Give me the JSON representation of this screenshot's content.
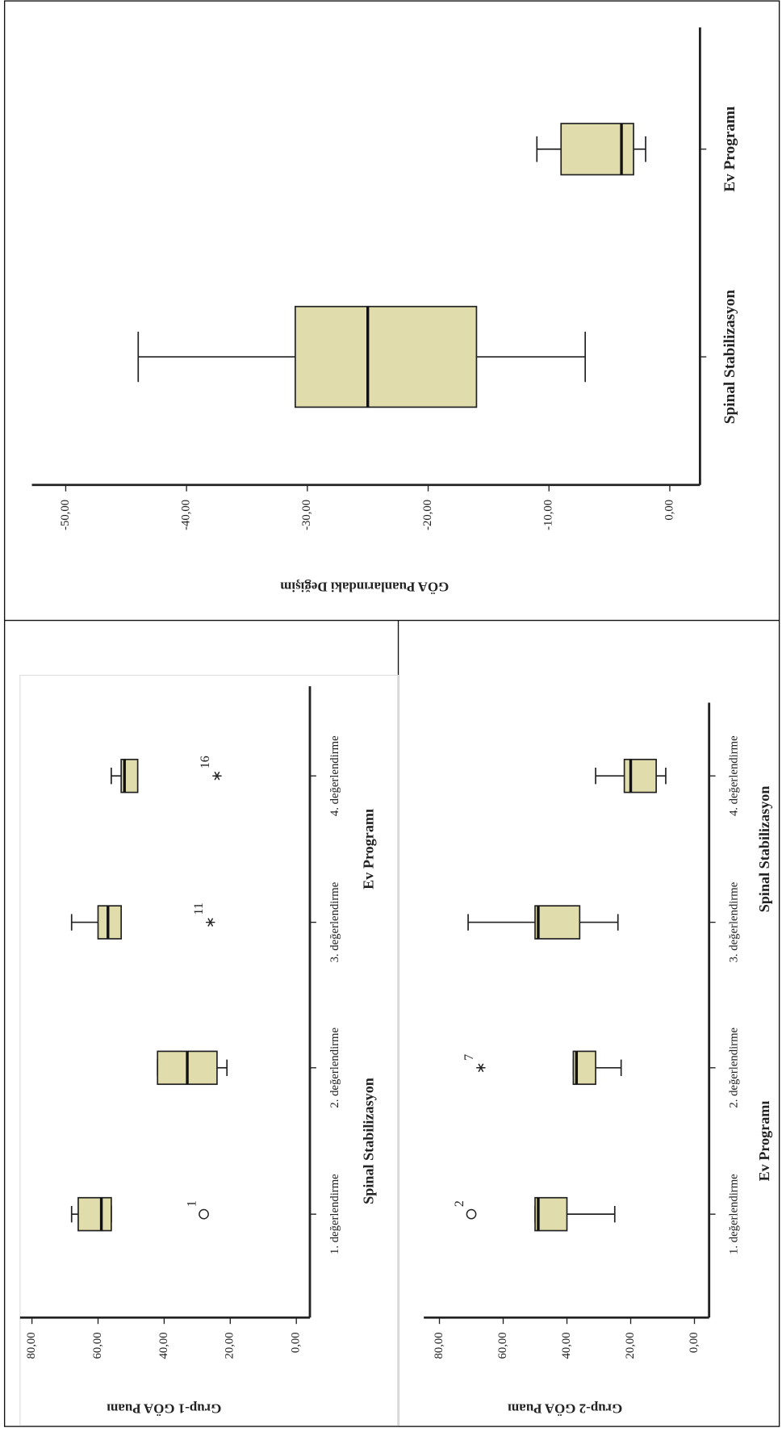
{
  "chart_data": [
    {
      "type": "boxplot",
      "y_label": "GÖA Puanlarındaki Değişim",
      "categories": [
        "Spinal Stabilizasyon",
        "Ev Programı"
      ],
      "boxes": [
        {
          "min": -44,
          "q1": -31,
          "median": -25,
          "q3": -16,
          "max": -7,
          "outliers": []
        },
        {
          "min": -11,
          "q1": -9,
          "median": -4,
          "q3": -3,
          "max": -2,
          "outliers": []
        }
      ],
      "ylim": [
        2.5,
        -52.8
      ],
      "yticks": [
        {
          "value": 0,
          "label": "0,00"
        },
        {
          "value": -10,
          "label": "-10,00"
        },
        {
          "value": -20,
          "label": "-20,00"
        },
        {
          "value": -30,
          "label": "-30,00"
        },
        {
          "value": -40,
          "label": "-40,00"
        },
        {
          "value": -50,
          "label": "-50,00"
        }
      ],
      "color": "#e0dcab"
    },
    {
      "type": "boxplot",
      "y_label": "Grup-1 GÖA Puanı",
      "categories": [
        "1. değerlendirme",
        "2. değerlendirme",
        "3. değerlendirme",
        "4. değerlendirme"
      ],
      "group_labels": [
        "Spinal Stabilizasyon",
        "Ev Programı"
      ],
      "boxes": [
        {
          "min": 56,
          "q1": 56,
          "median": 59,
          "q3": 66,
          "max": 68,
          "outliers": [
            {
              "value": 28,
              "label": "1",
              "marker": "circle"
            }
          ]
        },
        {
          "min": 21,
          "q1": 24,
          "median": 33,
          "q3": 42,
          "max": 42,
          "outliers": []
        },
        {
          "min": 53,
          "q1": 53,
          "median": 57,
          "q3": 60,
          "max": 68,
          "outliers": [
            {
              "value": 26,
              "label": "11",
              "marker": "star"
            }
          ]
        },
        {
          "min": 48,
          "q1": 48,
          "median": 52,
          "q3": 53,
          "max": 56,
          "outliers": [
            {
              "value": 24,
              "label": "16",
              "marker": "star"
            }
          ]
        }
      ],
      "ylim": [
        -4.1,
        83.6
      ],
      "yticks": [
        {
          "value": 0,
          "label": "0,00"
        },
        {
          "value": 20,
          "label": "20,00"
        },
        {
          "value": 40,
          "label": "40,00"
        },
        {
          "value": 60,
          "label": "60,00"
        },
        {
          "value": 80,
          "label": "80,00"
        }
      ],
      "color": "#e0dcab"
    },
    {
      "type": "boxplot",
      "y_label": "Grup-2 GÖA Puanı",
      "categories": [
        "1. değerlendirme",
        "2. değerlendirme",
        "3. değerlendirme",
        "4. değerlendirme"
      ],
      "group_labels": [
        "Ev Programı",
        "Spinal Stabilizasyon"
      ],
      "boxes": [
        {
          "min": 25,
          "q1": 40,
          "median": 49,
          "q3": 50,
          "max": 50,
          "outliers": [
            {
              "value": 70,
              "label": "2",
              "marker": "circle"
            }
          ]
        },
        {
          "min": 23,
          "q1": 31,
          "median": 37,
          "q3": 38,
          "max": 38,
          "outliers": [
            {
              "value": 67,
              "label": "7",
              "marker": "star"
            }
          ]
        },
        {
          "min": 24,
          "q1": 36,
          "median": 49,
          "q3": 50,
          "max": 71,
          "outliers": []
        },
        {
          "min": 9,
          "q1": 12,
          "median": 20,
          "q3": 22,
          "max": 31,
          "outliers": []
        }
      ],
      "ylim": [
        -4.6,
        84.9
      ],
      "yticks": [
        {
          "value": 0,
          "label": "0,00"
        },
        {
          "value": 20,
          "label": "20,00"
        },
        {
          "value": 40,
          "label": "40,00"
        },
        {
          "value": 60,
          "label": "60,00"
        },
        {
          "value": 80,
          "label": "80,00"
        }
      ],
      "color": "#e0dcab"
    }
  ]
}
